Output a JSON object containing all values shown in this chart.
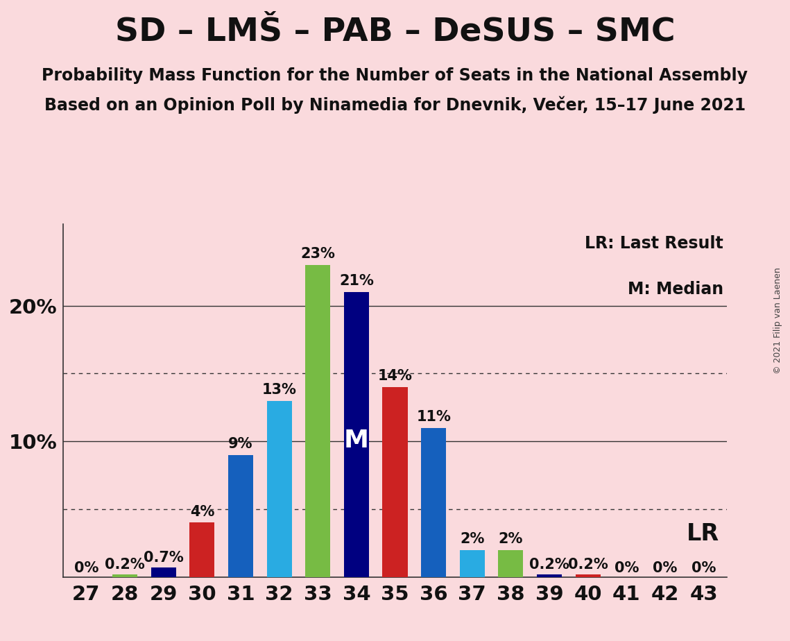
{
  "title": "SD – LMŠ – PAB – DeSUS – SMC",
  "subtitle1": "Probability Mass Function for the Number of Seats in the National Assembly",
  "subtitle2": "Based on an Opinion Poll by Ninamedia for Dnevnik, Večer, 15–17 June 2021",
  "copyright": "© 2021 Filip van Laenen",
  "background_color": "#FADADD",
  "seats": [
    27,
    28,
    29,
    30,
    31,
    32,
    33,
    34,
    35,
    36,
    37,
    38,
    39,
    40,
    41,
    42,
    43
  ],
  "bar_values": [
    0.0,
    0.2,
    0.7,
    4.0,
    9.0,
    13.0,
    23.0,
    21.0,
    14.0,
    11.0,
    2.0,
    2.0,
    0.2,
    0.2,
    0.0,
    0.0,
    0.0
  ],
  "bar_colors": [
    "#CC2222",
    "#77BB44",
    "#000080",
    "#CC2222",
    "#1560BD",
    "#29ABE2",
    "#77BB44",
    "#000080",
    "#CC2222",
    "#1560BD",
    "#29ABE2",
    "#77BB44",
    "#000080",
    "#CC2222",
    "#CC2222",
    "#CC2222",
    "#CC2222"
  ],
  "bar_labels": [
    "0%",
    "0.2%",
    "0.7%",
    "4%",
    "9%",
    "13%",
    "23%",
    "21%",
    "14%",
    "11%",
    "2%",
    "2%",
    "0.2%",
    "0.2%",
    "0%",
    "0%",
    "0%"
  ],
  "median_seat_idx": 7,
  "lr_seat_idx": 7,
  "ylim_max": 26,
  "ytick_positions": [
    10,
    20
  ],
  "ytick_labels": [
    "10%",
    "20%"
  ],
  "dotted_hlines": [
    5.0,
    15.0
  ],
  "title_fontsize": 34,
  "subtitle_fontsize": 17,
  "bar_label_fontsize": 15,
  "tick_fontsize": 21,
  "legend_fontsize": 17,
  "lr_fontsize": 24,
  "median_label_fontsize": 26,
  "copyright_fontsize": 9
}
